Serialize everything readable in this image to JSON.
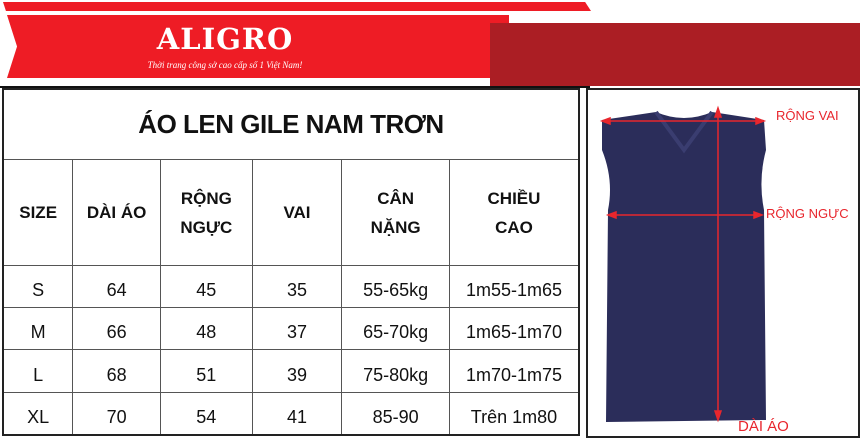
{
  "brand": {
    "logo": "ALIGRO",
    "slogan": "Thời trang công sở cao cấp số 1 Việt Nam!",
    "red": "#ee1c25",
    "dark_red": "#ab1e24"
  },
  "table": {
    "title": "ÁO LEN GILE NAM TRƠN",
    "headers": [
      [
        "SIZE",
        ""
      ],
      [
        "DÀI ÁO",
        ""
      ],
      [
        "RỘNG",
        "NGỰC"
      ],
      [
        "VAI",
        ""
      ],
      [
        "CÂN",
        "NẶNG"
      ],
      [
        "CHIỀU",
        "CAO"
      ]
    ],
    "rows": [
      [
        "S",
        "64",
        "45",
        "35",
        "55-65kg",
        "1m55-1m65"
      ],
      [
        "M",
        "66",
        "48",
        "37",
        "65-70kg",
        "1m65-1m70"
      ],
      [
        "L",
        "68",
        "51",
        "39",
        "75-80kg",
        "1m70-1m75"
      ],
      [
        "XL",
        "70",
        "54",
        "41",
        "85-90",
        "Trên 1m80"
      ]
    ]
  },
  "photo": {
    "labels": {
      "shoulder": "RỘNG VAI",
      "chest": "RỘNG NGỰC",
      "length": "DÀI ÁO"
    },
    "vest_color": "#2b2d5a",
    "arrow_color": "#e8262d"
  }
}
